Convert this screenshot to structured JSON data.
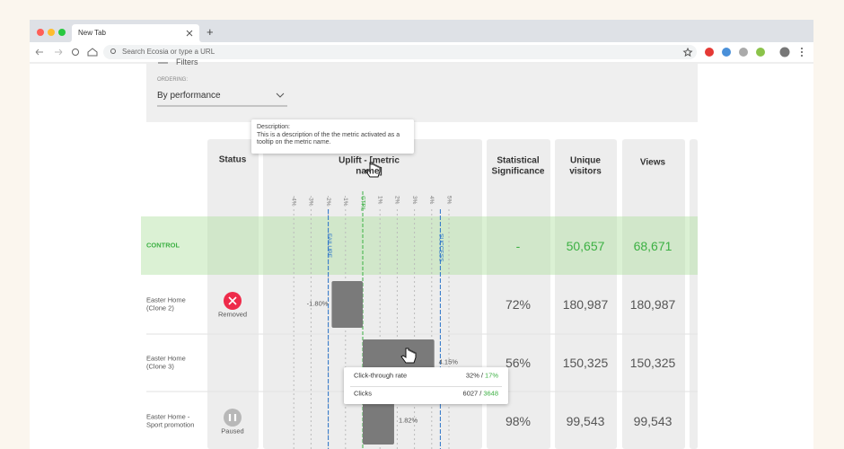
{
  "browser": {
    "tab_title": "New Tab",
    "new_tab": "+",
    "address_placeholder": "Search Ecosia or type a URL"
  },
  "filters": {
    "title": "Filters",
    "ordering_label": "ORDERING:",
    "ordering_value": "By performance"
  },
  "description_tooltip": {
    "title": "Description:",
    "text": "This is a description of the the metric activated as a tooltip on the metric name."
  },
  "table": {
    "headers": {
      "status": "Status",
      "uplift": "Uplift - [metric name]",
      "significance": "Statistical Significance",
      "visitors": "Unique visitors",
      "views": "Views"
    },
    "uplift_axis": {
      "ticks": [
        {
          "value": -4,
          "label": "-4%"
        },
        {
          "value": -3,
          "label": "-3%"
        },
        {
          "value": -2,
          "label": "-2%"
        },
        {
          "value": -1,
          "label": "-1%"
        },
        {
          "value": 0,
          "label": "CTRL"
        },
        {
          "value": 1,
          "label": "1%"
        },
        {
          "value": 2,
          "label": "2%"
        },
        {
          "value": 3,
          "label": "3%"
        },
        {
          "value": 4,
          "label": "4%"
        },
        {
          "value": 5,
          "label": "5%"
        }
      ],
      "failure": {
        "value": -2,
        "label": "FAILURE"
      },
      "success": {
        "value": 4.5,
        "label": "SUCCESS"
      }
    },
    "rows": [
      {
        "name": "CONTROL",
        "significance": "-",
        "visitors": "50,657",
        "views": "68,671"
      },
      {
        "name": "Easter Home (Clone 2)",
        "status": "Removed",
        "uplift": {
          "value": -1.8,
          "label": "-1.80%"
        },
        "significance": "72%",
        "visitors": "180,987",
        "views": "180,987"
      },
      {
        "name": "Easter Home (Clone 3)",
        "uplift": {
          "value": 4.15,
          "label": "4.15%"
        },
        "significance": "56%",
        "visitors": "150,325",
        "views": "150,325"
      },
      {
        "name": "Easter Home - Sport promotion",
        "status": "Paused",
        "uplift": {
          "value": 1.82,
          "label": "1.82%"
        },
        "significance": "98%",
        "visitors": "99,543",
        "views": "99,543"
      }
    ]
  },
  "hover_tooltip": {
    "rows": [
      {
        "metric": "Click-through rate",
        "variant": "32%",
        "separator": "/",
        "control": "17%"
      },
      {
        "metric": "Clicks",
        "variant": "6027",
        "separator": "/",
        "control": "3648"
      }
    ]
  }
}
